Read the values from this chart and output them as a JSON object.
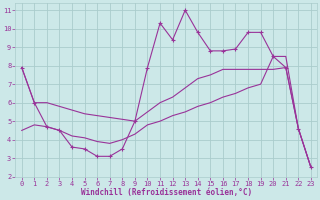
{
  "xlabel": "Windchill (Refroidissement éolien,°C)",
  "background_color": "#cce8e8",
  "grid_color": "#aacccc",
  "line_color": "#993399",
  "xlim": [
    -0.5,
    23.5
  ],
  "ylim": [
    2,
    11.4
  ],
  "xticks": [
    0,
    1,
    2,
    3,
    4,
    5,
    6,
    7,
    8,
    9,
    10,
    11,
    12,
    13,
    14,
    15,
    16,
    17,
    18,
    19,
    20,
    21,
    22,
    23
  ],
  "yticks": [
    2,
    3,
    4,
    5,
    6,
    7,
    8,
    9,
    10,
    11
  ],
  "series1_x": [
    0,
    1,
    2,
    3,
    4,
    5,
    6,
    7,
    8,
    9,
    10,
    11,
    12,
    13,
    14,
    15,
    16,
    17,
    18,
    19,
    20,
    21,
    22,
    23
  ],
  "series1_y": [
    7.9,
    6.0,
    4.7,
    4.5,
    3.6,
    3.5,
    3.1,
    3.1,
    3.5,
    5.0,
    7.9,
    10.3,
    9.4,
    11.0,
    9.8,
    8.8,
    8.8,
    8.9,
    9.8,
    9.8,
    8.5,
    7.9,
    4.6,
    2.5
  ],
  "series2_x": [
    0,
    1,
    2,
    3,
    4,
    5,
    6,
    7,
    8,
    9,
    10,
    11,
    12,
    13,
    14,
    15,
    16,
    17,
    18,
    19,
    20,
    21,
    22,
    23
  ],
  "series2_y": [
    7.9,
    6.0,
    6.0,
    5.8,
    5.6,
    5.4,
    5.3,
    5.2,
    5.1,
    5.0,
    5.5,
    6.0,
    6.3,
    6.8,
    7.3,
    7.5,
    7.8,
    7.8,
    7.8,
    7.8,
    7.8,
    7.9,
    4.6,
    2.5
  ],
  "series3_x": [
    0,
    1,
    2,
    3,
    4,
    5,
    6,
    7,
    8,
    9,
    10,
    11,
    12,
    13,
    14,
    15,
    16,
    17,
    18,
    19,
    20,
    21,
    22,
    23
  ],
  "series3_y": [
    4.5,
    4.8,
    4.7,
    4.5,
    4.2,
    4.1,
    3.9,
    3.8,
    4.0,
    4.3,
    4.8,
    5.0,
    5.3,
    5.5,
    5.8,
    6.0,
    6.3,
    6.5,
    6.8,
    7.0,
    8.5,
    8.5,
    4.6,
    2.5
  ]
}
